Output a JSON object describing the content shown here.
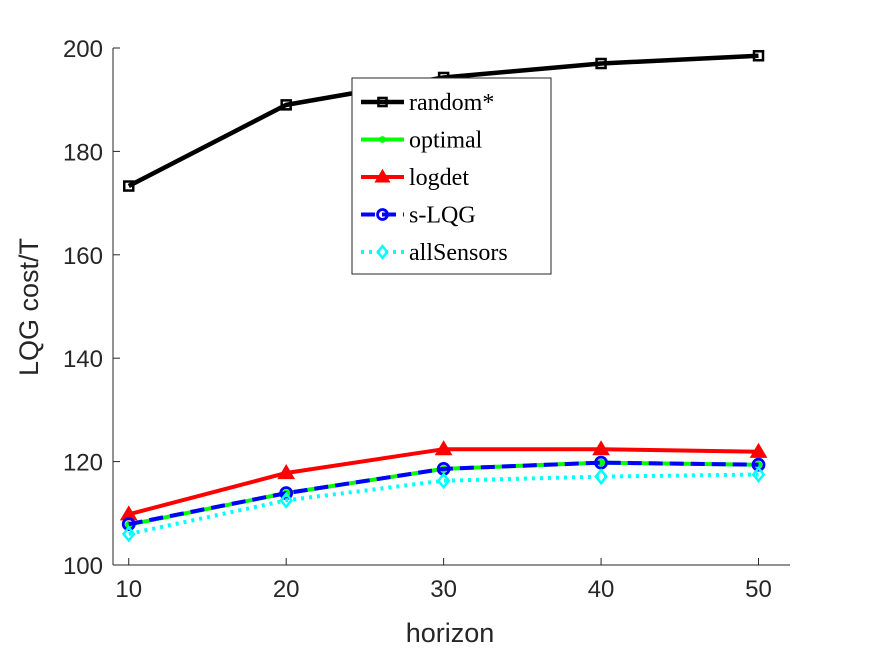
{
  "chart_data": {
    "type": "line",
    "xlabel": "horizon",
    "ylabel": "LQG cost/T",
    "xlim": [
      9,
      52
    ],
    "ylim": [
      100,
      200
    ],
    "xticks": [
      10,
      20,
      30,
      40,
      50
    ],
    "yticks": [
      100,
      120,
      140,
      160,
      180,
      200
    ],
    "grid": false,
    "legend_position": "top-center",
    "x": [
      10,
      20,
      30,
      40,
      50
    ],
    "series": [
      {
        "name": "random*",
        "values": [
          173.3,
          189.0,
          194.3,
          197.0,
          198.5
        ],
        "color": "#000000",
        "marker": "square",
        "dash": "solid"
      },
      {
        "name": "optimal",
        "values": [
          107.8,
          113.9,
          118.6,
          119.8,
          119.4
        ],
        "color": "#00ff00",
        "marker": "dot",
        "dash": "solid"
      },
      {
        "name": "logdet",
        "values": [
          109.8,
          117.8,
          122.4,
          122.4,
          121.9
        ],
        "color": "#ff0000",
        "marker": "triangle",
        "dash": "solid"
      },
      {
        "name": "s-LQG",
        "values": [
          107.9,
          113.9,
          118.6,
          119.8,
          119.4
        ],
        "color": "#0000ff",
        "marker": "circle",
        "dash": "dashed"
      },
      {
        "name": "allSensors",
        "values": [
          106.0,
          112.5,
          116.3,
          117.1,
          117.5
        ],
        "color": "#00ffff",
        "marker": "diamond",
        "dash": "dotted"
      }
    ]
  }
}
